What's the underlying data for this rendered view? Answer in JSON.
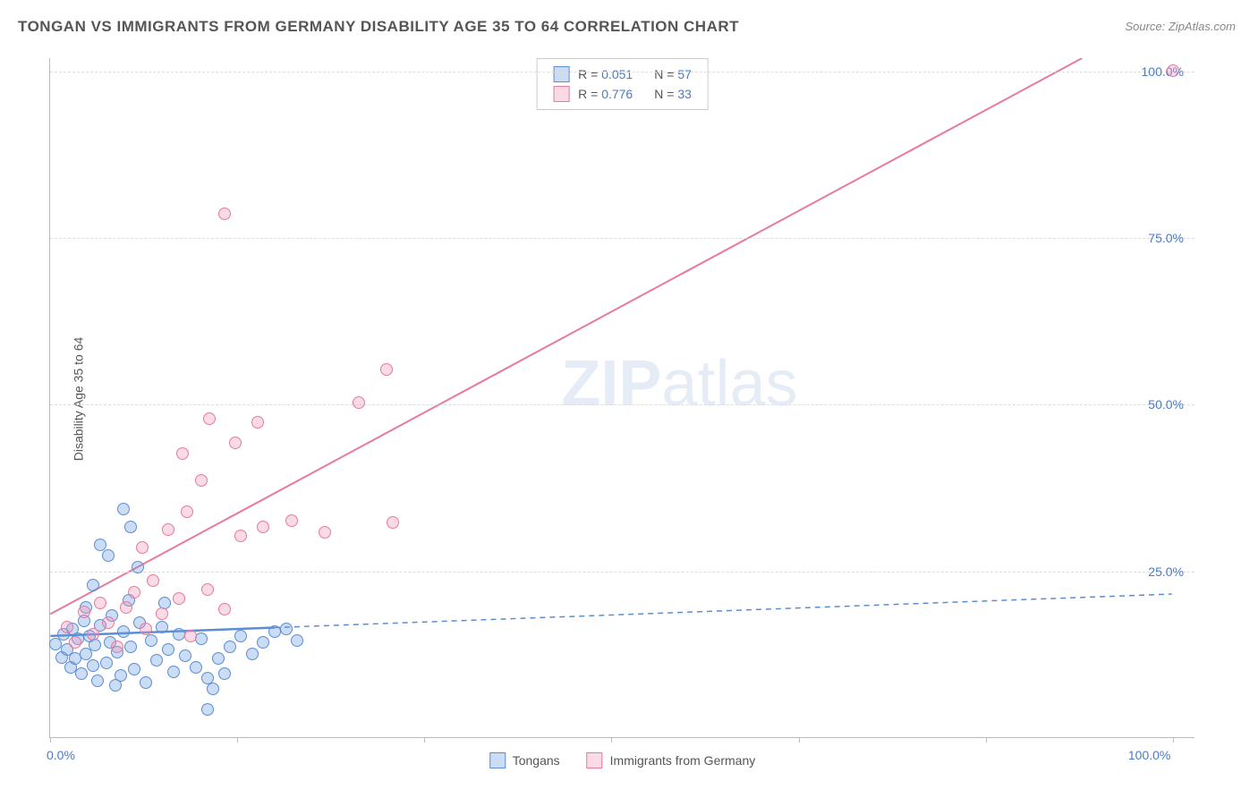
{
  "title": "TONGAN VS IMMIGRANTS FROM GERMANY DISABILITY AGE 35 TO 64 CORRELATION CHART",
  "source": "Source: ZipAtlas.com",
  "y_axis_title": "Disability Age 35 to 64",
  "watermark": {
    "prefix": "ZIP",
    "suffix": "atlas"
  },
  "chart": {
    "type": "scatter",
    "background_color": "#ffffff",
    "grid_color": "#dddddd",
    "axis_color": "#bbbbbb",
    "xlim": [
      0,
      102
    ],
    "ylim": [
      0,
      102
    ],
    "x_ticks": [
      0,
      100
    ],
    "x_tick_labels": [
      "0.0%",
      "100.0%"
    ],
    "x_minor_ticks": [
      16.67,
      33.33,
      50,
      66.67,
      83.33
    ],
    "y_ticks": [
      25,
      50,
      75,
      100
    ],
    "y_tick_labels": [
      "25.0%",
      "50.0%",
      "75.0%",
      "100.0%"
    ],
    "tick_label_color": "#4a7ac7",
    "tick_label_fontsize": 14,
    "title_color": "#555555",
    "title_fontsize": 17,
    "marker_radius": 7,
    "marker_opacity_fill": 0.35,
    "marker_stroke_width": 1.5,
    "series": [
      {
        "name": "Tongans",
        "color": "#5b8dd6",
        "fill_color": "rgba(107, 157, 224, 0.35)",
        "R": "0.051",
        "N": "57",
        "regression": {
          "x1": 0,
          "y1": 15.2,
          "x2": 100,
          "y2": 21.5,
          "solid_until_x": 20,
          "stroke_width": 2.5,
          "dash": "6,5"
        },
        "points": [
          [
            0.5,
            14
          ],
          [
            1,
            12
          ],
          [
            1.2,
            15.5
          ],
          [
            1.5,
            13.2
          ],
          [
            1.8,
            10.5
          ],
          [
            2,
            16.2
          ],
          [
            2.2,
            11.8
          ],
          [
            2.5,
            14.8
          ],
          [
            2.8,
            9.5
          ],
          [
            3,
            17.5
          ],
          [
            3.2,
            12.5
          ],
          [
            3.5,
            15.2
          ],
          [
            3.8,
            10.8
          ],
          [
            4,
            13.8
          ],
          [
            4.2,
            8.5
          ],
          [
            4.5,
            16.8
          ],
          [
            5,
            11.2
          ],
          [
            5.3,
            14.2
          ],
          [
            5.5,
            18.2
          ],
          [
            5.8,
            7.8
          ],
          [
            6,
            12.8
          ],
          [
            6.3,
            9.2
          ],
          [
            6.5,
            15.8
          ],
          [
            7,
            20.5
          ],
          [
            7.2,
            13.5
          ],
          [
            7.5,
            10.2
          ],
          [
            8,
            17.2
          ],
          [
            8.5,
            8.2
          ],
          [
            9,
            14.5
          ],
          [
            3.8,
            22.8
          ],
          [
            9.5,
            11.5
          ],
          [
            10,
            16.5
          ],
          [
            7.8,
            25.5
          ],
          [
            5.2,
            27.2
          ],
          [
            10.5,
            13.2
          ],
          [
            11,
            9.8
          ],
          [
            4.5,
            28.8
          ],
          [
            11.5,
            15.5
          ],
          [
            12,
            12.2
          ],
          [
            7.2,
            31.5
          ],
          [
            13,
            10.5
          ],
          [
            10.2,
            20.2
          ],
          [
            6.5,
            34.2
          ],
          [
            14,
            8.8
          ],
          [
            13.5,
            14.8
          ],
          [
            15,
            11.8
          ],
          [
            3.2,
            19.5
          ],
          [
            16,
            13.5
          ],
          [
            14.5,
            7.2
          ],
          [
            17,
            15.2
          ],
          [
            15.5,
            9.5
          ],
          [
            18,
            12.5
          ],
          [
            19,
            14.2
          ],
          [
            20,
            15.8
          ],
          [
            21,
            16.2
          ],
          [
            14,
            4.2
          ],
          [
            22,
            14.5
          ]
        ]
      },
      {
        "name": "Immigrants from Germany",
        "color": "#e77a9d",
        "fill_color": "rgba(240, 150, 180, 0.35)",
        "R": "0.776",
        "N": "33",
        "regression": {
          "x1": 0,
          "y1": 18.5,
          "x2": 92,
          "y2": 102,
          "solid_until_x": 92,
          "stroke_width": 2,
          "dash": ""
        },
        "points": [
          [
            1.5,
            16.5
          ],
          [
            2.2,
            14.2
          ],
          [
            3,
            18.8
          ],
          [
            3.8,
            15.5
          ],
          [
            4.5,
            20.2
          ],
          [
            5.2,
            17.2
          ],
          [
            6,
            13.5
          ],
          [
            6.8,
            19.5
          ],
          [
            7.5,
            21.8
          ],
          [
            8.5,
            16.2
          ],
          [
            9.2,
            23.5
          ],
          [
            10,
            18.5
          ],
          [
            11.5,
            20.8
          ],
          [
            12.5,
            15.2
          ],
          [
            8.2,
            28.5
          ],
          [
            14,
            22.2
          ],
          [
            10.5,
            31.2
          ],
          [
            15.5,
            19.2
          ],
          [
            12.2,
            33.8
          ],
          [
            17,
            30.2
          ],
          [
            13.5,
            38.5
          ],
          [
            19,
            31.5
          ],
          [
            11.8,
            42.5
          ],
          [
            16.5,
            44.2
          ],
          [
            21.5,
            32.5
          ],
          [
            14.2,
            47.8
          ],
          [
            18.5,
            47.2
          ],
          [
            24.5,
            30.8
          ],
          [
            27.5,
            50.2
          ],
          [
            30.5,
            32.2
          ],
          [
            30,
            55.2
          ],
          [
            15.5,
            78.5
          ],
          [
            100,
            100
          ]
        ]
      }
    ]
  },
  "legend_top": [
    {
      "swatch_series": 0,
      "r_label": "R =",
      "n_label": "N ="
    },
    {
      "swatch_series": 1,
      "r_label": "R =",
      "n_label": "N ="
    }
  ],
  "legend_bottom": [
    {
      "swatch_series": 0
    },
    {
      "swatch_series": 1
    }
  ]
}
